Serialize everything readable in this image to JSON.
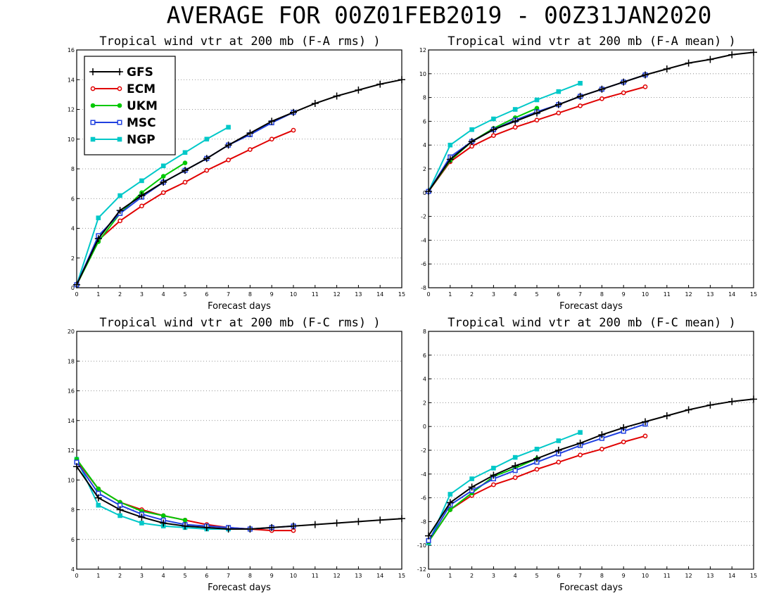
{
  "title": "AVERAGE FOR 00Z01FEB2019 - 00Z31JAN2020",
  "colors": {
    "GFS": "#000000",
    "ECM": "#e00000",
    "UKM": "#00c800",
    "MSC": "#2040e0",
    "NGP": "#00c8c8"
  },
  "legend": [
    "GFS",
    "ECM",
    "UKM",
    "MSC",
    "NGP"
  ],
  "chart_data": [
    {
      "type": "line",
      "title": "Tropical wind vtr at 200 mb (F-A rms) )",
      "xlabel": "Forecast days",
      "ylabel": "",
      "xlim": [
        0,
        15
      ],
      "ylim": [
        0,
        16
      ],
      "xticks": [
        0,
        1,
        2,
        3,
        4,
        5,
        6,
        7,
        8,
        9,
        10,
        11,
        12,
        13,
        14,
        15
      ],
      "yticks": [
        0,
        2,
        4,
        6,
        8,
        10,
        12,
        14,
        16
      ],
      "grid": true,
      "legend_position": "top-left",
      "series": [
        {
          "name": "GFS",
          "x": [
            0,
            1,
            2,
            3,
            4,
            5,
            6,
            7,
            8,
            9,
            10,
            11,
            12,
            13,
            14,
            15
          ],
          "y": [
            0.2,
            3.3,
            5.2,
            6.2,
            7.1,
            7.9,
            8.7,
            9.6,
            10.4,
            11.2,
            11.8,
            12.4,
            12.9,
            13.3,
            13.7,
            14.0
          ]
        },
        {
          "name": "ECM",
          "x": [
            0,
            1,
            2,
            3,
            4,
            5,
            6,
            7,
            8,
            9,
            10
          ],
          "y": [
            0.2,
            3.2,
            4.5,
            5.5,
            6.4,
            7.1,
            7.9,
            8.6,
            9.3,
            10.0,
            10.6
          ]
        },
        {
          "name": "UKM",
          "x": [
            0,
            1,
            2,
            3,
            4,
            5
          ],
          "y": [
            0.2,
            3.1,
            5.0,
            6.4,
            7.5,
            8.4
          ]
        },
        {
          "name": "MSC",
          "x": [
            0,
            1,
            2,
            3,
            4,
            5,
            6,
            7,
            8,
            9,
            10
          ],
          "y": [
            0.2,
            3.5,
            5.0,
            6.1,
            7.1,
            7.9,
            8.7,
            9.6,
            10.3,
            11.1,
            11.8
          ]
        },
        {
          "name": "NGP",
          "x": [
            0,
            1,
            2,
            3,
            4,
            5,
            6,
            7
          ],
          "y": [
            0.2,
            4.7,
            6.2,
            7.2,
            8.2,
            9.1,
            10.0,
            10.8
          ]
        }
      ]
    },
    {
      "type": "line",
      "title": "Tropical wind vtr at 200 mb (F-A mean) )",
      "xlabel": "Forecast days",
      "ylabel": "",
      "xlim": [
        0,
        15
      ],
      "ylim": [
        -8,
        12
      ],
      "xticks": [
        0,
        1,
        2,
        3,
        4,
        5,
        6,
        7,
        8,
        9,
        10,
        11,
        12,
        13,
        14,
        15
      ],
      "yticks": [
        -8,
        -6,
        -4,
        -2,
        0,
        2,
        4,
        6,
        8,
        10,
        12
      ],
      "grid": true,
      "series": [
        {
          "name": "GFS",
          "x": [
            0,
            1,
            2,
            3,
            4,
            5,
            6,
            7,
            8,
            9,
            10,
            11,
            12,
            13,
            14,
            15
          ],
          "y": [
            0.1,
            2.8,
            4.3,
            5.3,
            6.0,
            6.7,
            7.4,
            8.1,
            8.7,
            9.3,
            9.9,
            10.4,
            10.9,
            11.2,
            11.6,
            11.8
          ]
        },
        {
          "name": "ECM",
          "x": [
            0,
            1,
            2,
            3,
            4,
            5,
            6,
            7,
            8,
            9,
            10
          ],
          "y": [
            0.1,
            2.6,
            3.9,
            4.8,
            5.5,
            6.1,
            6.7,
            7.3,
            7.9,
            8.4,
            8.9
          ]
        },
        {
          "name": "UKM",
          "x": [
            0,
            1,
            2,
            3,
            4,
            5
          ],
          "y": [
            0.1,
            2.7,
            4.3,
            5.4,
            6.3,
            7.1
          ]
        },
        {
          "name": "MSC",
          "x": [
            0,
            1,
            2,
            3,
            4,
            5,
            6,
            7,
            8,
            9,
            10
          ],
          "y": [
            0.1,
            3.0,
            4.3,
            5.3,
            6.1,
            6.8,
            7.4,
            8.1,
            8.7,
            9.3,
            9.9
          ]
        },
        {
          "name": "NGP",
          "x": [
            0,
            1,
            2,
            3,
            4,
            5,
            6,
            7
          ],
          "y": [
            0.1,
            4.0,
            5.3,
            6.2,
            7.0,
            7.8,
            8.5,
            9.2
          ]
        }
      ]
    },
    {
      "type": "line",
      "title": "Tropical wind vtr at 200 mb (F-C rms) )",
      "xlabel": "Forecast days",
      "ylabel": "",
      "xlim": [
        0,
        15
      ],
      "ylim": [
        4,
        20
      ],
      "xticks": [
        0,
        1,
        2,
        3,
        4,
        5,
        6,
        7,
        8,
        9,
        10,
        11,
        12,
        13,
        14,
        15
      ],
      "yticks": [
        4,
        6,
        8,
        10,
        12,
        14,
        16,
        18,
        20
      ],
      "grid": true,
      "series": [
        {
          "name": "GFS",
          "x": [
            0,
            1,
            2,
            3,
            4,
            5,
            6,
            7,
            8,
            9,
            10,
            11,
            12,
            13,
            14,
            15
          ],
          "y": [
            10.9,
            8.8,
            8.0,
            7.5,
            7.1,
            6.9,
            6.8,
            6.7,
            6.7,
            6.8,
            6.9,
            7.0,
            7.1,
            7.2,
            7.3,
            7.4
          ]
        },
        {
          "name": "ECM",
          "x": [
            0,
            1,
            2,
            3,
            4,
            5,
            6,
            7,
            8,
            9,
            10
          ],
          "y": [
            11.3,
            9.4,
            8.5,
            8.0,
            7.6,
            7.3,
            7.0,
            6.8,
            6.7,
            6.6,
            6.6
          ]
        },
        {
          "name": "UKM",
          "x": [
            0,
            1,
            2,
            3,
            4,
            5
          ],
          "y": [
            11.4,
            9.4,
            8.5,
            7.9,
            7.6,
            7.3
          ]
        },
        {
          "name": "MSC",
          "x": [
            0,
            1,
            2,
            3,
            4,
            5,
            6,
            7,
            8,
            9,
            10
          ],
          "y": [
            11.2,
            9.1,
            8.3,
            7.7,
            7.3,
            7.0,
            6.9,
            6.8,
            6.7,
            6.8,
            6.9
          ]
        },
        {
          "name": "NGP",
          "x": [
            0,
            1,
            2,
            3,
            4,
            5,
            6,
            7
          ],
          "y": [
            11.4,
            8.3,
            7.6,
            7.1,
            6.9,
            6.8,
            6.7,
            6.7
          ]
        }
      ]
    },
    {
      "type": "line",
      "title": "Tropical wind vtr at 200 mb (F-C mean) )",
      "xlabel": "Forecast days",
      "ylabel": "",
      "xlim": [
        0,
        15
      ],
      "ylim": [
        -12,
        8
      ],
      "xticks": [
        0,
        1,
        2,
        3,
        4,
        5,
        6,
        7,
        8,
        9,
        10,
        11,
        12,
        13,
        14,
        15
      ],
      "yticks": [
        -12,
        -10,
        -8,
        -6,
        -4,
        -2,
        0,
        2,
        4,
        6,
        8
      ],
      "grid": true,
      "series": [
        {
          "name": "GFS",
          "x": [
            0,
            1,
            2,
            3,
            4,
            5,
            6,
            7,
            8,
            9,
            10,
            11,
            12,
            13,
            14,
            15
          ],
          "y": [
            -9.2,
            -6.4,
            -5.1,
            -4.1,
            -3.3,
            -2.7,
            -2.0,
            -1.4,
            -0.7,
            -0.1,
            0.4,
            0.9,
            1.4,
            1.8,
            2.1,
            2.3
          ]
        },
        {
          "name": "ECM",
          "x": [
            0,
            1,
            2,
            3,
            4,
            5,
            6,
            7,
            8,
            9,
            10
          ],
          "y": [
            -9.7,
            -7.0,
            -5.8,
            -4.9,
            -4.3,
            -3.6,
            -3.0,
            -2.4,
            -1.9,
            -1.3,
            -0.8
          ]
        },
        {
          "name": "UKM",
          "x": [
            0,
            1,
            2,
            3,
            4,
            5
          ],
          "y": [
            -9.7,
            -7.0,
            -5.6,
            -4.2,
            -3.5,
            -2.7
          ]
        },
        {
          "name": "MSC",
          "x": [
            0,
            1,
            2,
            3,
            4,
            5,
            6,
            7,
            8,
            9,
            10
          ],
          "y": [
            -9.6,
            -6.6,
            -5.4,
            -4.4,
            -3.7,
            -3.0,
            -2.3,
            -1.6,
            -1.0,
            -0.4,
            0.2
          ]
        },
        {
          "name": "NGP",
          "x": [
            0,
            1,
            2,
            3,
            4,
            5,
            6,
            7
          ],
          "y": [
            -9.8,
            -5.7,
            -4.4,
            -3.5,
            -2.6,
            -1.9,
            -1.2,
            -0.5
          ]
        }
      ]
    }
  ]
}
